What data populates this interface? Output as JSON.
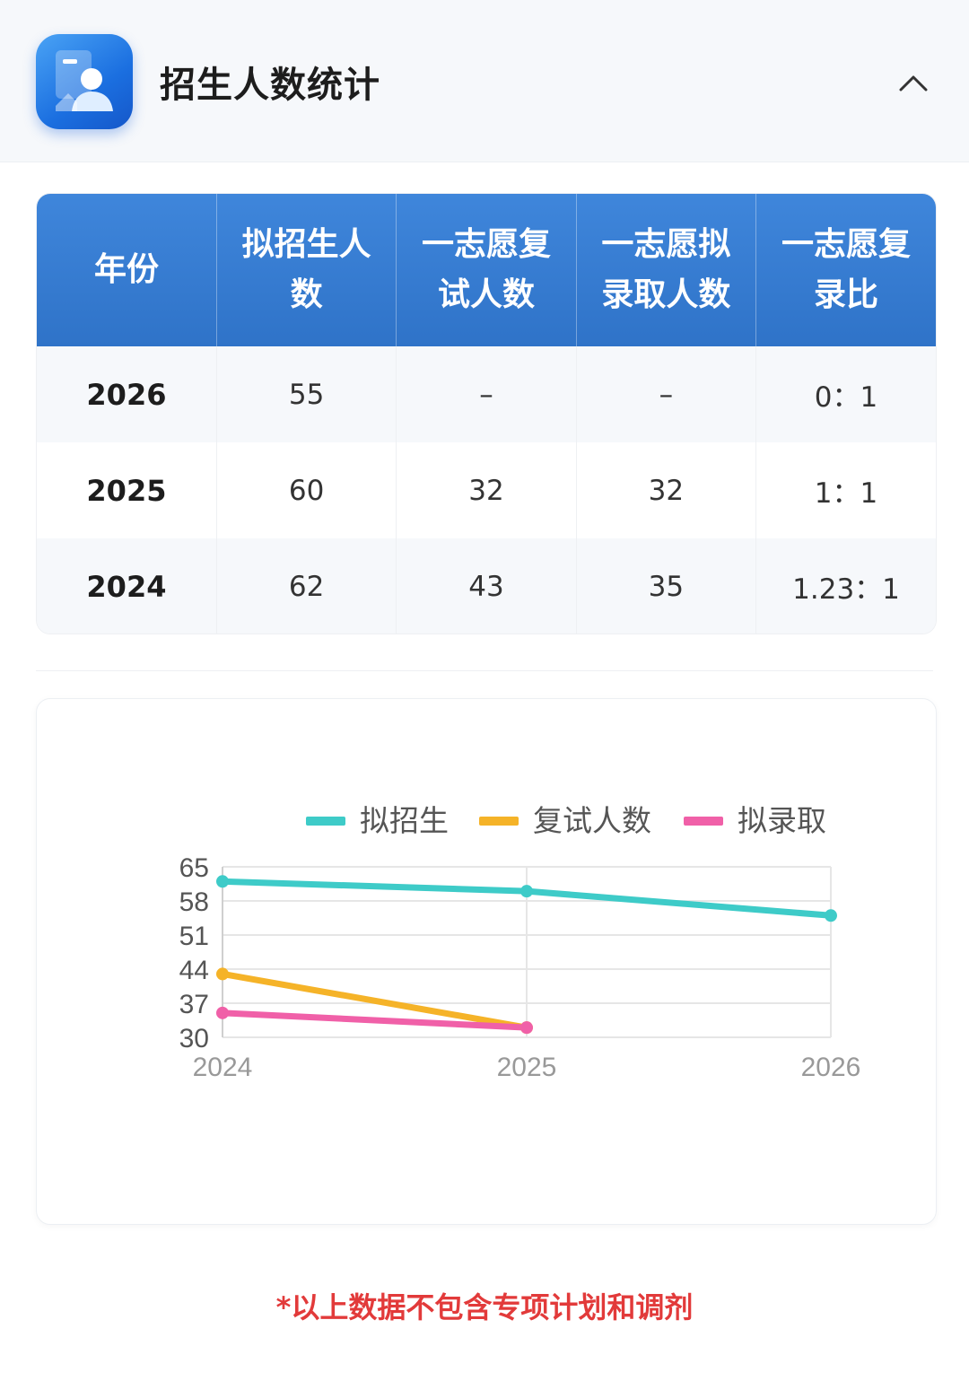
{
  "header": {
    "title": "招生人数统计"
  },
  "table": {
    "columns": [
      "年份",
      "拟招生人数",
      "一志愿复试人数",
      "一志愿拟录取人数",
      "一志愿复录比"
    ],
    "column_lines": [
      [
        "年份"
      ],
      [
        "拟招生人",
        "数"
      ],
      [
        "一志愿复",
        "试人数"
      ],
      [
        "一志愿拟",
        "录取人数"
      ],
      [
        "一志愿复",
        "录比"
      ]
    ],
    "rows": [
      [
        "2026",
        "55",
        "–",
        "–",
        "0：1"
      ],
      [
        "2025",
        "60",
        "32",
        "32",
        "1：1"
      ],
      [
        "2024",
        "62",
        "43",
        "35",
        "1.23：1"
      ]
    ]
  },
  "chart_data": {
    "type": "line",
    "categories": [
      "2024",
      "2025",
      "2026"
    ],
    "series": [
      {
        "name": "拟招生",
        "values": [
          62,
          60,
          55
        ],
        "color": "#3ecbc8"
      },
      {
        "name": "复试人数",
        "values": [
          43,
          32,
          null
        ],
        "color": "#f5b328"
      },
      {
        "name": "拟录取",
        "values": [
          35,
          32,
          null
        ],
        "color": "#f060a8"
      }
    ],
    "yticks": [
      30,
      37,
      44,
      51,
      58,
      65
    ],
    "ylim": [
      30,
      65
    ],
    "legend": "top"
  },
  "footnote": "*以上数据不包含专项计划和调剂"
}
